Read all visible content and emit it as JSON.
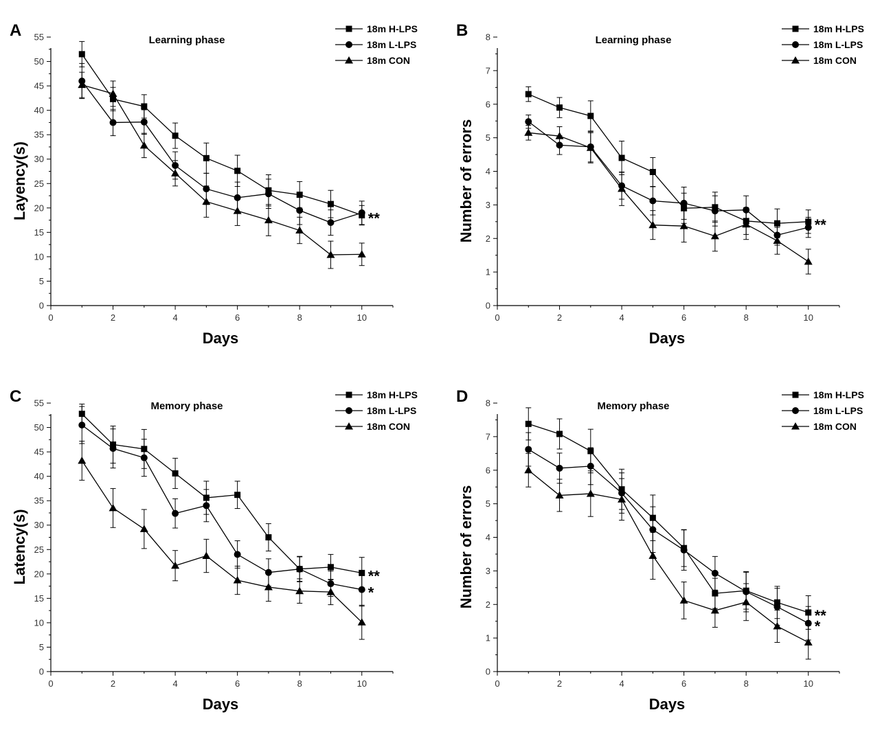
{
  "chart_data": [
    {
      "panel_letter": "A",
      "type": "line",
      "title": "Learning phase",
      "xlabel": "Days",
      "ylabel": "Layency(s)",
      "xlim": [
        0,
        11
      ],
      "ylim": [
        0,
        55
      ],
      "xticks": [
        0,
        2,
        4,
        6,
        8,
        10
      ],
      "yticks": [
        0,
        5,
        10,
        15,
        20,
        25,
        30,
        35,
        40,
        45,
        50,
        55
      ],
      "x": [
        1,
        2,
        3,
        4,
        5,
        6,
        7,
        8,
        9,
        10
      ],
      "legend_placement": "top-right",
      "series": [
        {
          "name": "18m H-LPS",
          "marker": "square",
          "values": [
            51.5,
            42.3,
            40.8,
            34.8,
            30.2,
            27.6,
            23.6,
            22.7,
            20.8,
            18.5
          ],
          "errors": [
            2.6,
            2.4,
            2.4,
            2.6,
            3.1,
            3.2,
            3.2,
            2.7,
            2.8,
            2.0
          ]
        },
        {
          "name": "18m L-LPS",
          "marker": "circle",
          "values": [
            46.0,
            37.5,
            37.6,
            28.7,
            23.9,
            22.1,
            22.9,
            19.5,
            17.0,
            19.0
          ],
          "errors": [
            3.6,
            2.7,
            2.5,
            2.8,
            3.2,
            3.2,
            3.0,
            2.9,
            2.6,
            2.4
          ]
        },
        {
          "name": "18m CON",
          "marker": "triangle",
          "values": [
            45.2,
            43.4,
            32.8,
            27.1,
            21.3,
            19.4,
            17.5,
            15.4,
            10.4,
            10.5
          ],
          "errors": [
            2.6,
            2.6,
            2.5,
            2.6,
            3.2,
            3.0,
            3.2,
            2.7,
            2.8,
            2.3
          ]
        }
      ],
      "significance": [
        {
          "series": "18m H-LPS",
          "label": "**"
        }
      ]
    },
    {
      "panel_letter": "B",
      "type": "line",
      "title": "Learning phase",
      "xlabel": "Days",
      "ylabel": "Number of errors",
      "xlim": [
        0,
        11
      ],
      "ylim": [
        0,
        8
      ],
      "xticks": [
        0,
        2,
        4,
        6,
        8,
        10
      ],
      "yticks": [
        0,
        1,
        2,
        3,
        4,
        5,
        6,
        7,
        8
      ],
      "x": [
        1,
        2,
        3,
        4,
        5,
        6,
        7,
        8,
        9,
        10
      ],
      "legend_placement": "top-right",
      "series": [
        {
          "name": "18m H-LPS",
          "marker": "square",
          "values": [
            6.3,
            5.9,
            5.65,
            4.4,
            3.98,
            2.9,
            2.93,
            2.52,
            2.45,
            2.5
          ],
          "errors": [
            0.22,
            0.3,
            0.45,
            0.5,
            0.43,
            0.45,
            0.45,
            0.4,
            0.43,
            0.35
          ]
        },
        {
          "name": "18m L-LPS",
          "marker": "circle",
          "values": [
            5.48,
            4.78,
            4.73,
            3.57,
            3.12,
            3.05,
            2.82,
            2.85,
            2.1,
            2.33
          ],
          "errors": [
            0.2,
            0.28,
            0.45,
            0.4,
            0.42,
            0.48,
            0.45,
            0.42,
            0.3,
            0.3
          ]
        },
        {
          "name": "18m CON",
          "marker": "triangle",
          "values": [
            5.15,
            5.05,
            4.7,
            3.48,
            2.4,
            2.37,
            2.07,
            2.42,
            1.93,
            1.31
          ],
          "errors": [
            0.22,
            0.28,
            0.45,
            0.5,
            0.43,
            0.48,
            0.45,
            0.45,
            0.4,
            0.37
          ]
        }
      ],
      "significance": [
        {
          "series": "18m H-LPS",
          "label": "**"
        }
      ]
    },
    {
      "panel_letter": "C",
      "type": "line",
      "title": "Memory phase",
      "xlabel": "Days",
      "ylabel": "Latency(s)",
      "xlim": [
        0,
        11
      ],
      "ylim": [
        0,
        55
      ],
      "xticks": [
        0,
        2,
        4,
        6,
        8,
        10
      ],
      "yticks": [
        0,
        5,
        10,
        15,
        20,
        25,
        30,
        35,
        40,
        45,
        50,
        55
      ],
      "x": [
        1,
        2,
        3,
        4,
        5,
        6,
        7,
        8,
        9,
        10
      ],
      "legend_placement": "top-right",
      "series": [
        {
          "name": "18m H-LPS",
          "marker": "square",
          "values": [
            52.8,
            46.5,
            45.6,
            40.6,
            35.6,
            36.2,
            27.5,
            21.0,
            21.4,
            20.2
          ],
          "errors": [
            2.0,
            3.8,
            4.0,
            3.1,
            3.4,
            2.8,
            2.8,
            2.5,
            2.6,
            3.2
          ]
        },
        {
          "name": "18m L-LPS",
          "marker": "circle",
          "values": [
            50.5,
            45.7,
            43.8,
            32.4,
            34.0,
            24.0,
            20.3,
            21.0,
            18.0,
            16.8
          ],
          "errors": [
            3.8,
            4.0,
            3.8,
            3.0,
            3.3,
            2.8,
            2.8,
            2.6,
            2.6,
            3.4
          ]
        },
        {
          "name": "18m CON",
          "marker": "triangle",
          "values": [
            43.2,
            33.5,
            29.2,
            21.7,
            23.7,
            18.7,
            17.3,
            16.5,
            16.3,
            10.1
          ],
          "errors": [
            4.0,
            4.0,
            4.0,
            3.1,
            3.4,
            2.9,
            2.9,
            2.5,
            2.6,
            3.5
          ]
        }
      ],
      "significance": [
        {
          "series": "18m H-LPS",
          "label": "**"
        },
        {
          "series": "18m L-LPS",
          "label": "*"
        }
      ]
    },
    {
      "panel_letter": "D",
      "type": "line",
      "title": "Memory phase",
      "xlabel": "Days",
      "ylabel": "Number of errors",
      "xlim": [
        0,
        11
      ],
      "ylim": [
        0,
        8
      ],
      "xticks": [
        0,
        2,
        4,
        6,
        8,
        10
      ],
      "yticks": [
        0,
        1,
        2,
        3,
        4,
        5,
        6,
        7,
        8
      ],
      "x": [
        1,
        2,
        3,
        4,
        5,
        6,
        7,
        8,
        9,
        10
      ],
      "legend_placement": "top-right",
      "series": [
        {
          "name": "18m H-LPS",
          "marker": "square",
          "values": [
            7.38,
            7.08,
            6.57,
            5.43,
            4.58,
            3.68,
            2.33,
            2.41,
            2.06,
            1.76
          ],
          "errors": [
            0.48,
            0.45,
            0.65,
            0.6,
            0.68,
            0.55,
            0.45,
            0.55,
            0.48,
            0.5
          ]
        },
        {
          "name": "18m L-LPS",
          "marker": "circle",
          "values": [
            6.62,
            6.06,
            6.12,
            5.32,
            4.23,
            3.62,
            2.93,
            2.38,
            1.93,
            1.44
          ],
          "errors": [
            0.5,
            0.45,
            0.55,
            0.6,
            0.68,
            0.6,
            0.5,
            0.6,
            0.55,
            0.5
          ]
        },
        {
          "name": "18m CON",
          "marker": "triangle",
          "values": [
            6.0,
            5.25,
            5.3,
            5.13,
            3.45,
            2.12,
            1.82,
            2.07,
            1.35,
            0.87
          ],
          "errors": [
            0.5,
            0.48,
            0.68,
            0.62,
            0.7,
            0.55,
            0.5,
            0.55,
            0.48,
            0.5
          ]
        }
      ],
      "significance": [
        {
          "series": "18m H-LPS",
          "label": "**"
        },
        {
          "series": "18m L-LPS",
          "label": "*"
        }
      ]
    }
  ]
}
